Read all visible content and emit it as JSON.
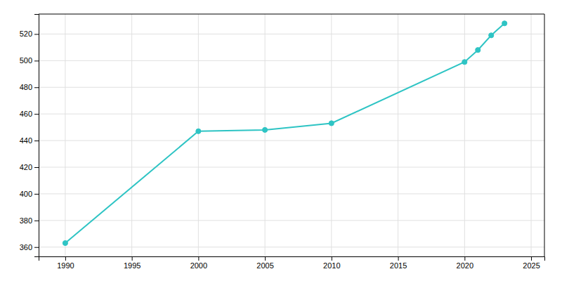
{
  "chart_data": {
    "type": "line",
    "x": [
      1990,
      2000,
      2005,
      2010,
      2020,
      2021,
      2022,
      2023
    ],
    "values": [
      363,
      447,
      448,
      453,
      499,
      508,
      519,
      528
    ],
    "color": "#2EC4C4",
    "marker": "circle",
    "xlim": [
      1988,
      2026
    ],
    "ylim": [
      353,
      535
    ],
    "xticks": [
      1990,
      1995,
      2000,
      2005,
      2010,
      2015,
      2020,
      2025
    ],
    "yticks": [
      360,
      380,
      400,
      420,
      440,
      460,
      480,
      500,
      520
    ],
    "grid": true
  }
}
